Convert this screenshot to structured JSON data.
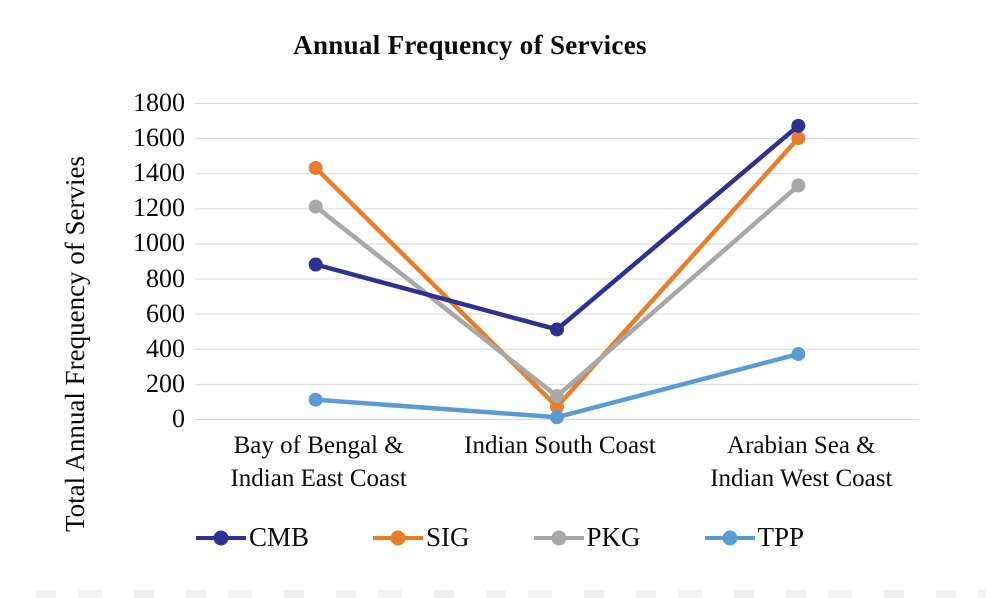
{
  "chart_data": {
    "type": "line",
    "title": "Annual Frequency of Services",
    "ylabel": "Total Annual Frequency of Servies",
    "xlabel": "",
    "categories": [
      "Bay of Bengal & Indian East Coast",
      "Indian South Coast",
      "Arabian Sea & Indian West Coast"
    ],
    "categories_display": [
      [
        "Bay of Bengal &",
        "Indian East Coast"
      ],
      [
        "Indian South Coast"
      ],
      [
        "Arabian Sea &",
        "Indian West Coast"
      ]
    ],
    "series": [
      {
        "name": "CMB",
        "color": "#2E3192",
        "values": [
          880,
          510,
          1670
        ]
      },
      {
        "name": "SIG",
        "color": "#E87E2B",
        "values": [
          1430,
          70,
          1600
        ]
      },
      {
        "name": "PKG",
        "color": "#A8A8A8",
        "values": [
          1210,
          130,
          1330
        ]
      },
      {
        "name": "TPP",
        "color": "#5B9BD5",
        "values": [
          110,
          10,
          370
        ]
      }
    ],
    "ylim": [
      0,
      1800
    ],
    "yticks": [
      0,
      200,
      400,
      600,
      800,
      1000,
      1200,
      1400,
      1600,
      1800
    ],
    "grid": true,
    "gridline_color": "#D9D9D9",
    "legend_position": "bottom",
    "legend": [
      "CMB",
      "SIG",
      "PKG",
      "TPP"
    ]
  }
}
